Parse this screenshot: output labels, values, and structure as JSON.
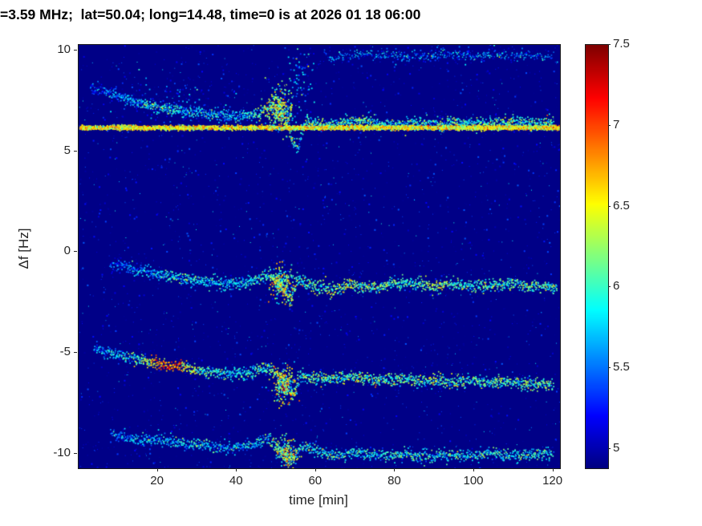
{
  "figure": {
    "background": "#ffffff"
  },
  "chart_data": {
    "type": "heatmap",
    "title": "=3.59 MHz;  lat=50.04; long=14.48, time=0 is at 2026 01 18 06:00",
    "xlabel": "time [min]",
    "ylabel": "Δf [Hz]",
    "xlim": [
      0,
      121.7
    ],
    "ylim": [
      -10.72,
      10.28
    ],
    "xticks": [
      20,
      40,
      60,
      80,
      100,
      120
    ],
    "yticks": [
      -10,
      -5,
      0,
      5,
      10
    ],
    "colormap": "jet",
    "grid": false,
    "background_value": 4.9,
    "colorbar": {
      "vmin": 4.88,
      "vmax": 7.5,
      "ticks": [
        5,
        5.5,
        6,
        6.5,
        7,
        7.5
      ]
    },
    "noise": {
      "speckle_count": 2400,
      "speckle_range": [
        4.92,
        5.45
      ],
      "bright_speckle_count": 260,
      "bright_speckle_range": [
        5.5,
        5.95
      ]
    },
    "series": [
      {
        "name": "upper-doppler-trace",
        "density": 14,
        "jitter_f": 0.15,
        "dot": 1.7,
        "points": [
          [
            3,
            8.2
          ],
          [
            8,
            7.9
          ],
          [
            14,
            7.5
          ],
          [
            20,
            7.2
          ],
          [
            27,
            6.95
          ],
          [
            34,
            6.8
          ],
          [
            40,
            6.75
          ],
          [
            45,
            6.85
          ],
          [
            48,
            7.2
          ],
          [
            51,
            7.1
          ],
          [
            52.5,
            6.4
          ],
          [
            54,
            5.6
          ],
          [
            55.5,
            5.15
          ],
          [
            56.5,
            5.9
          ],
          [
            57.5,
            6.5
          ],
          [
            60,
            6.4
          ],
          [
            64,
            6.3
          ],
          [
            68,
            6.45
          ],
          [
            72,
            6.55
          ],
          [
            76,
            6.35
          ],
          [
            80,
            6.3
          ],
          [
            85,
            6.4
          ],
          [
            90,
            6.35
          ],
          [
            95,
            6.4
          ],
          [
            100,
            6.35
          ],
          [
            105,
            6.4
          ],
          [
            110,
            6.45
          ],
          [
            115,
            6.4
          ],
          [
            120,
            6.45
          ]
        ],
        "intensity": [
          5.3,
          5.5,
          5.7,
          5.9,
          5.8,
          5.7,
          5.7,
          5.9,
          6.4,
          6.5,
          6.2,
          6.0,
          5.8,
          5.8,
          6.0,
          6.0,
          5.9,
          6.0,
          6.1,
          5.9,
          5.9,
          6.0,
          5.9,
          6.0,
          5.9,
          6.0,
          6.0,
          6.0,
          6.0
        ]
      },
      {
        "name": "carrier-line",
        "density": 40,
        "jitter_f": 0.05,
        "dot": 1.8,
        "solid_line": true,
        "line_value": 6.45,
        "points": [
          [
            0.5,
            6.17
          ],
          [
            121.5,
            6.17
          ]
        ],
        "intensity": [
          6.5,
          6.5
        ]
      },
      {
        "name": "center-doppler-trace",
        "density": 14,
        "jitter_f": 0.15,
        "dot": 1.7,
        "points": [
          [
            8,
            -0.6
          ],
          [
            13,
            -0.8
          ],
          [
            18,
            -1.0
          ],
          [
            24,
            -1.2
          ],
          [
            30,
            -1.45
          ],
          [
            36,
            -1.6
          ],
          [
            42,
            -1.55
          ],
          [
            46,
            -1.3
          ],
          [
            48,
            -1.1
          ],
          [
            50,
            -1.3
          ],
          [
            52,
            -1.9
          ],
          [
            53.5,
            -2.5
          ],
          [
            54.5,
            -2.0
          ],
          [
            55,
            -1.4
          ],
          [
            57,
            -1.5
          ],
          [
            60,
            -1.7
          ],
          [
            63,
            -1.9
          ],
          [
            66,
            -1.8
          ],
          [
            69,
            -1.55
          ],
          [
            72,
            -1.7
          ],
          [
            75,
            -1.8
          ],
          [
            78,
            -1.6
          ],
          [
            82,
            -1.5
          ],
          [
            86,
            -1.6
          ],
          [
            90,
            -1.7
          ],
          [
            94,
            -1.6
          ],
          [
            98,
            -1.65
          ],
          [
            102,
            -1.7
          ],
          [
            106,
            -1.6
          ],
          [
            110,
            -1.55
          ],
          [
            114,
            -1.7
          ],
          [
            118,
            -1.75
          ],
          [
            121,
            -1.8
          ]
        ],
        "intensity": [
          5.4,
          5.5,
          5.7,
          5.8,
          5.8,
          5.7,
          5.8,
          5.9,
          6.0,
          6.2,
          6.4,
          6.3,
          6.1,
          6.0,
          5.9,
          6.0,
          6.1,
          6.2,
          6.3,
          6.1,
          6.0,
          6.1,
          6.0,
          6.1,
          6.2,
          6.1,
          6.0,
          6.1,
          6.0,
          6.0,
          6.1,
          6.0,
          5.9
        ]
      },
      {
        "name": "lower-doppler-trace",
        "density": 14,
        "jitter_f": 0.15,
        "dot": 1.7,
        "points": [
          [
            4,
            -4.8
          ],
          [
            8,
            -5.0
          ],
          [
            12,
            -5.2
          ],
          [
            16,
            -5.4
          ],
          [
            20,
            -5.55
          ],
          [
            24,
            -5.6
          ],
          [
            27,
            -5.65
          ],
          [
            31,
            -5.9
          ],
          [
            35,
            -6.0
          ],
          [
            39,
            -6.05
          ],
          [
            43,
            -6.0
          ],
          [
            46,
            -5.8
          ],
          [
            48,
            -5.75
          ],
          [
            50,
            -6.0
          ],
          [
            52,
            -6.4
          ],
          [
            53.5,
            -6.9
          ],
          [
            54.5,
            -7.1
          ],
          [
            55.5,
            -6.6
          ],
          [
            56,
            -6.1
          ],
          [
            58,
            -6.2
          ],
          [
            62,
            -6.3
          ],
          [
            66,
            -6.25
          ],
          [
            70,
            -6.2
          ],
          [
            74,
            -6.3
          ],
          [
            78,
            -6.35
          ],
          [
            82,
            -6.3
          ],
          [
            86,
            -6.4
          ],
          [
            90,
            -6.35
          ],
          [
            95,
            -6.45
          ],
          [
            100,
            -6.4
          ],
          [
            105,
            -6.5
          ],
          [
            110,
            -6.45
          ],
          [
            115,
            -6.55
          ],
          [
            120,
            -6.6
          ]
        ],
        "intensity": [
          5.5,
          5.6,
          5.8,
          6.1,
          6.8,
          6.9,
          6.6,
          6.0,
          5.9,
          5.8,
          5.9,
          6.0,
          6.1,
          6.3,
          6.5,
          6.4,
          6.2,
          6.0,
          5.9,
          6.0,
          6.1,
          6.0,
          6.1,
          6.2,
          6.0,
          6.1,
          6.0,
          6.1,
          6.0,
          6.1,
          6.0,
          6.0,
          6.1,
          6.0
        ]
      },
      {
        "name": "bottom-doppler-trace",
        "density": 12,
        "jitter_f": 0.15,
        "dot": 1.7,
        "points": [
          [
            8,
            -9.0
          ],
          [
            12,
            -9.2
          ],
          [
            16,
            -9.35
          ],
          [
            20,
            -9.3
          ],
          [
            24,
            -9.4
          ],
          [
            28,
            -9.5
          ],
          [
            33,
            -9.6
          ],
          [
            38,
            -9.7
          ],
          [
            43,
            -9.6
          ],
          [
            46,
            -9.4
          ],
          [
            48,
            -9.3
          ],
          [
            50,
            -9.6
          ],
          [
            52,
            -10.0
          ],
          [
            53.5,
            -10.4
          ],
          [
            55,
            -10.0
          ],
          [
            56,
            -9.6
          ],
          [
            58,
            -9.8
          ],
          [
            62,
            -10.0
          ],
          [
            66,
            -10.1
          ],
          [
            70,
            -9.9
          ],
          [
            74,
            -10.05
          ],
          [
            78,
            -10.1
          ],
          [
            82,
            -10.0
          ],
          [
            86,
            -10.1
          ],
          [
            90,
            -10.15
          ],
          [
            95,
            -10.05
          ],
          [
            100,
            -10.1
          ],
          [
            105,
            -10.0
          ],
          [
            110,
            -10.1
          ],
          [
            115,
            -10.05
          ],
          [
            120,
            -10.0
          ]
        ],
        "intensity": [
          5.4,
          5.6,
          5.7,
          5.6,
          5.7,
          5.8,
          5.7,
          5.6,
          5.7,
          5.8,
          5.9,
          6.1,
          6.4,
          6.3,
          6.1,
          5.9,
          5.8,
          5.9,
          5.8,
          5.9,
          5.8,
          5.9,
          5.8,
          5.9,
          5.8,
          5.9,
          5.8,
          5.9,
          5.8,
          5.9,
          5.8
        ]
      },
      {
        "name": "top-faint-trace",
        "density": 6,
        "jitter_f": 0.12,
        "dot": 1.5,
        "points": [
          [
            62,
            9.9
          ],
          [
            64,
            9.4
          ],
          [
            66,
            9.7
          ],
          [
            70,
            9.8
          ],
          [
            75,
            9.75
          ],
          [
            80,
            9.8
          ],
          [
            85,
            9.7
          ],
          [
            90,
            9.75
          ],
          [
            95,
            9.8
          ],
          [
            100,
            9.7
          ],
          [
            105,
            9.75
          ],
          [
            110,
            9.7
          ],
          [
            115,
            9.75
          ],
          [
            120,
            9.7
          ]
        ],
        "intensity": [
          5.5,
          5.6,
          5.5,
          5.6,
          5.5,
          5.6,
          5.5,
          5.6,
          5.5,
          5.6,
          5.5,
          5.6,
          5.5,
          5.6
        ]
      }
    ],
    "bursts": [
      {
        "t": 51,
        "f": 7.1,
        "spread_t": 2.8,
        "spread_f": 0.85,
        "intensity": 6.2,
        "count": 260
      },
      {
        "t": 56,
        "f": 8.6,
        "spread_t": 2.5,
        "spread_f": 1.6,
        "intensity": 5.5,
        "count": 80
      },
      {
        "t": 51.5,
        "f": -1.6,
        "spread_t": 2.4,
        "spread_f": 0.7,
        "intensity": 6.2,
        "count": 200
      },
      {
        "t": 52,
        "f": -6.6,
        "spread_t": 2.4,
        "spread_f": 0.75,
        "intensity": 6.3,
        "count": 200
      },
      {
        "t": 52.5,
        "f": -10.0,
        "spread_t": 2.2,
        "spread_f": 0.6,
        "intensity": 6.2,
        "count": 150
      },
      {
        "t": 25,
        "f": 7.4,
        "spread_t": 14,
        "spread_f": 1.1,
        "intensity": 5.25,
        "count": 150
      },
      {
        "t": 90,
        "f": 9.8,
        "spread_t": 28,
        "spread_f": 0.4,
        "intensity": 5.3,
        "count": 120
      }
    ]
  }
}
